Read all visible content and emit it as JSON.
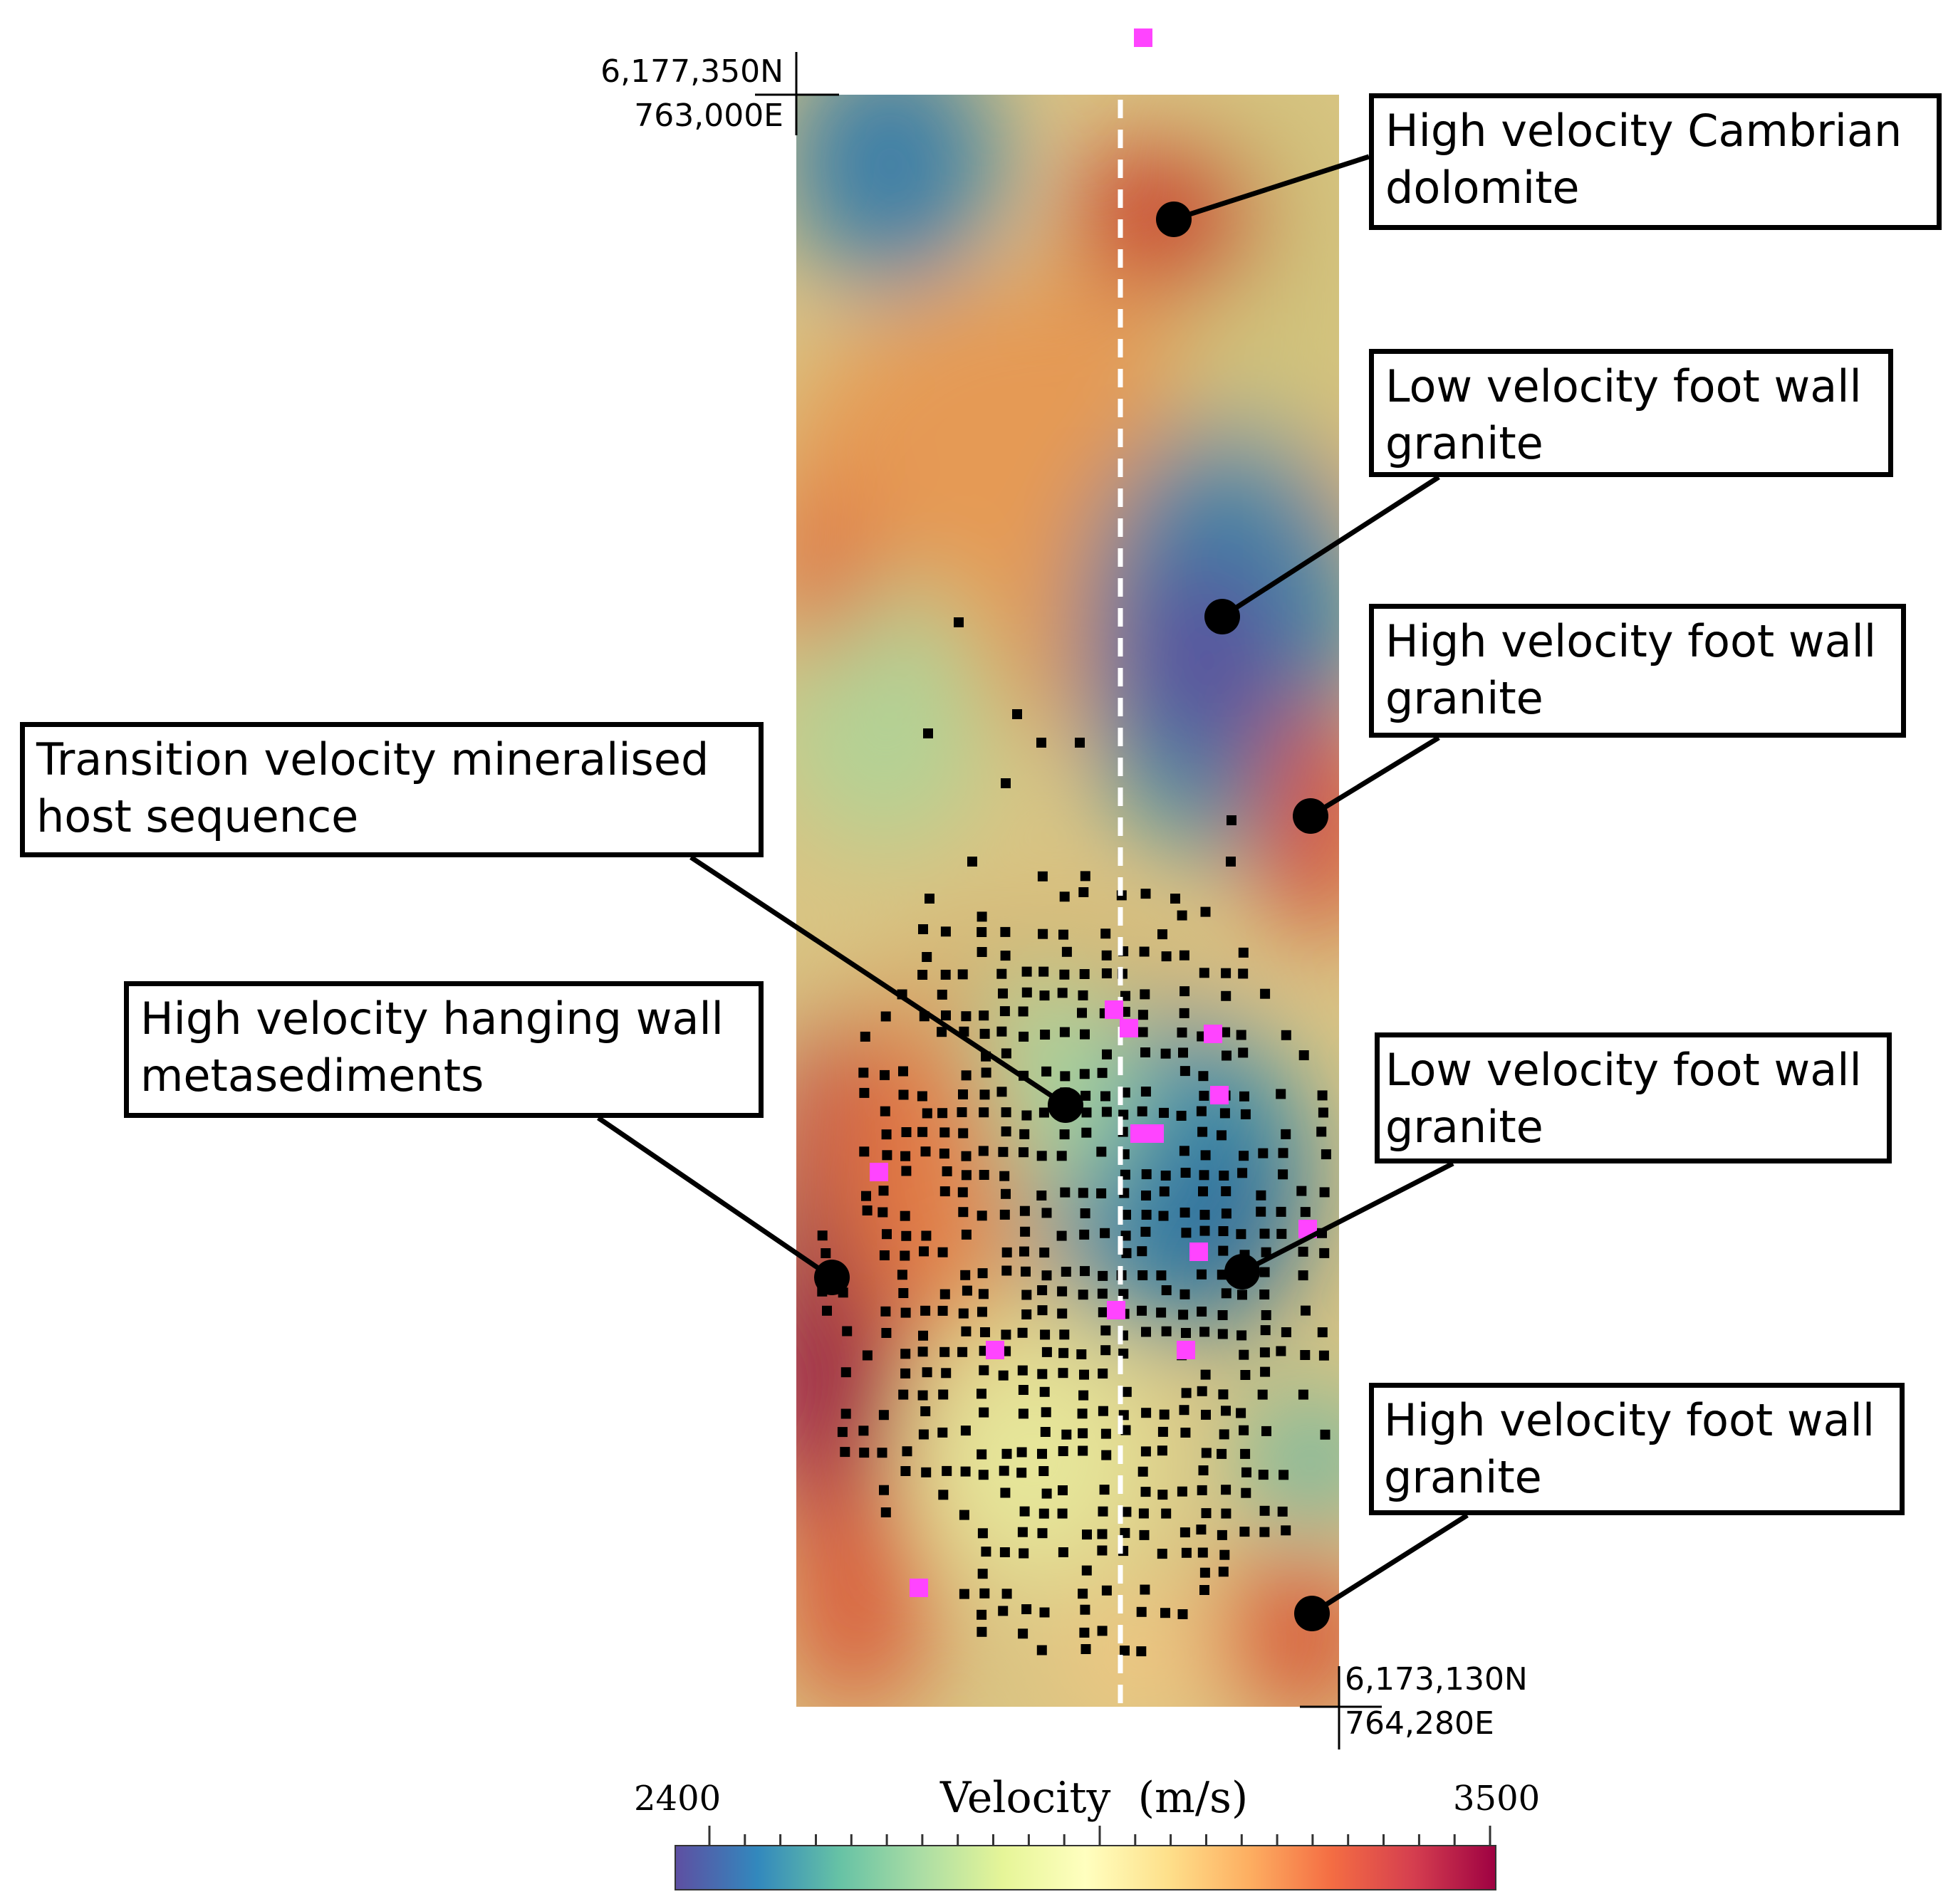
{
  "map": {
    "corner_top_left": {
      "northing": "6,177,350N",
      "easting": "763,000E"
    },
    "corner_bottom_right": {
      "northing": "6,173,130N",
      "easting": "764,280E"
    }
  },
  "callouts": [
    {
      "id": "cambrian-dolomite",
      "lines": [
        "High velocity Cambrian",
        "dolomite"
      ]
    },
    {
      "id": "low-fw-granite-upper",
      "lines": [
        "Low velocity foot wall",
        "granite"
      ]
    },
    {
      "id": "high-fw-granite-upper",
      "lines": [
        "High velocity foot wall",
        "granite"
      ]
    },
    {
      "id": "transition-host",
      "lines": [
        "Transition velocity mineralised",
        "host sequence"
      ]
    },
    {
      "id": "hanging-wall",
      "lines": [
        "High velocity hanging wall",
        "metasediments"
      ]
    },
    {
      "id": "low-fw-granite-lower",
      "lines": [
        "Low velocity foot wall",
        "granite"
      ]
    },
    {
      "id": "high-fw-granite-lower",
      "lines": [
        "High velocity foot wall",
        "granite"
      ]
    }
  ],
  "colorbar": {
    "title": "Velocity  (m/s)",
    "min_label": "2400",
    "max_label": "3500",
    "colormap": [
      "#5e4fa2",
      "#3288bd",
      "#66c2a5",
      "#abdda4",
      "#e6f598",
      "#ffffbf",
      "#fee08b",
      "#fdae61",
      "#f46d43",
      "#d53e4f",
      "#9e0142"
    ]
  },
  "colors": {
    "receiver": "#000000",
    "source": "#ff44ff",
    "profile_line": "#ffffff"
  }
}
